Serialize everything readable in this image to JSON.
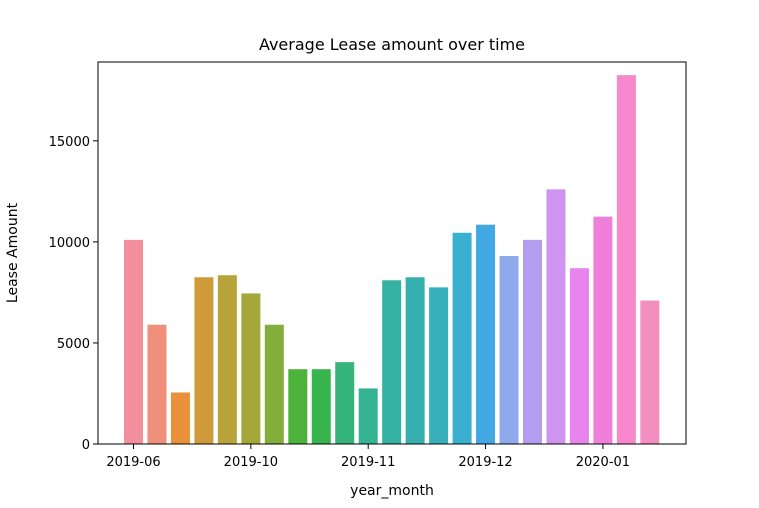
{
  "chart_data": {
    "type": "bar",
    "title": "Average Lease amount over time",
    "xlabel": "year_month",
    "ylabel": "Lease Amount",
    "ylim": [
      0,
      18900
    ],
    "yticks": [
      0,
      5000,
      10000,
      15000
    ],
    "xticks": [
      {
        "at": 0,
        "label": "2019-06"
      },
      {
        "at": 5,
        "label": "2019-10"
      },
      {
        "at": 10,
        "label": "2019-11"
      },
      {
        "at": 15,
        "label": "2019-12"
      },
      {
        "at": 20,
        "label": "2020-01"
      }
    ],
    "values": [
      10100,
      5900,
      2550,
      8250,
      8350,
      7450,
      5900,
      3700,
      3700,
      4050,
      2750,
      8100,
      8250,
      7750,
      10450,
      10850,
      9300,
      10100,
      12600,
      8700,
      11250,
      18250,
      7100
    ],
    "colors": [
      "#f38f9d",
      "#f0907a",
      "#e8913a",
      "#cf9a3a",
      "#b7a339",
      "#a3a838",
      "#84ae3a",
      "#4cb23a",
      "#37b44d",
      "#35b37a",
      "#36b392",
      "#35b2a3",
      "#36afaf",
      "#38b0bb",
      "#3ab0d1",
      "#41a8e3",
      "#8ea9ec",
      "#b29ef0",
      "#cf94f0",
      "#e784ee",
      "#f07fdc",
      "#f688cb",
      "#f58ec0"
    ],
    "grid": false,
    "legend": "none"
  }
}
